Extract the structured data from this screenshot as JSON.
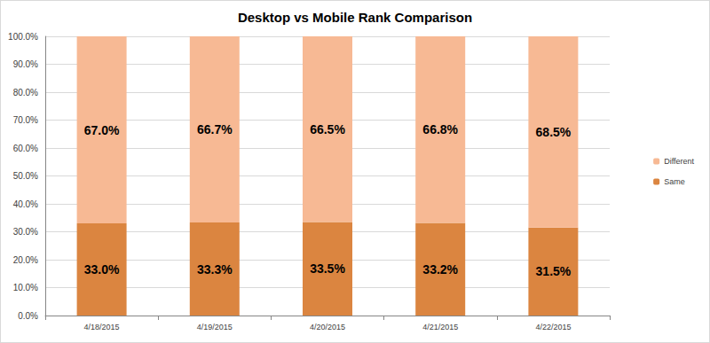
{
  "chart_data": {
    "type": "bar",
    "title": "Desktop vs Mobile Rank Comparison",
    "categories": [
      "4/18/2015",
      "4/19/2015",
      "4/20/2015",
      "4/21/2015",
      "4/22/2015"
    ],
    "series": [
      {
        "name": "Same",
        "color": "#db8540",
        "values": [
          33.0,
          33.3,
          33.5,
          33.2,
          31.5
        ],
        "value_labels": [
          "33.0%",
          "33.3%",
          "33.5%",
          "33.2%",
          "31.5%"
        ]
      },
      {
        "name": "Different",
        "color": "#f7b994",
        "values": [
          67.0,
          66.7,
          66.5,
          66.8,
          68.5
        ],
        "value_labels": [
          "67.0%",
          "66.7%",
          "66.5%",
          "66.8%",
          "68.5%"
        ]
      }
    ],
    "stacked": true,
    "data_labels": true,
    "legend": "right",
    "grid": true,
    "ylim": [
      0,
      100
    ],
    "yticks": [
      {
        "value": 0,
        "label": "0.0%"
      },
      {
        "value": 10,
        "label": "10.0%"
      },
      {
        "value": 20,
        "label": "20.0%"
      },
      {
        "value": 30,
        "label": "30.0%"
      },
      {
        "value": 40,
        "label": "40.0%"
      },
      {
        "value": 50,
        "label": "50.0%"
      },
      {
        "value": 60,
        "label": "60.0%"
      },
      {
        "value": 70,
        "label": "70.0%"
      },
      {
        "value": 80,
        "label": "80.0%"
      },
      {
        "value": 90,
        "label": "90.0%"
      },
      {
        "value": 100,
        "label": "100.0%"
      }
    ]
  }
}
